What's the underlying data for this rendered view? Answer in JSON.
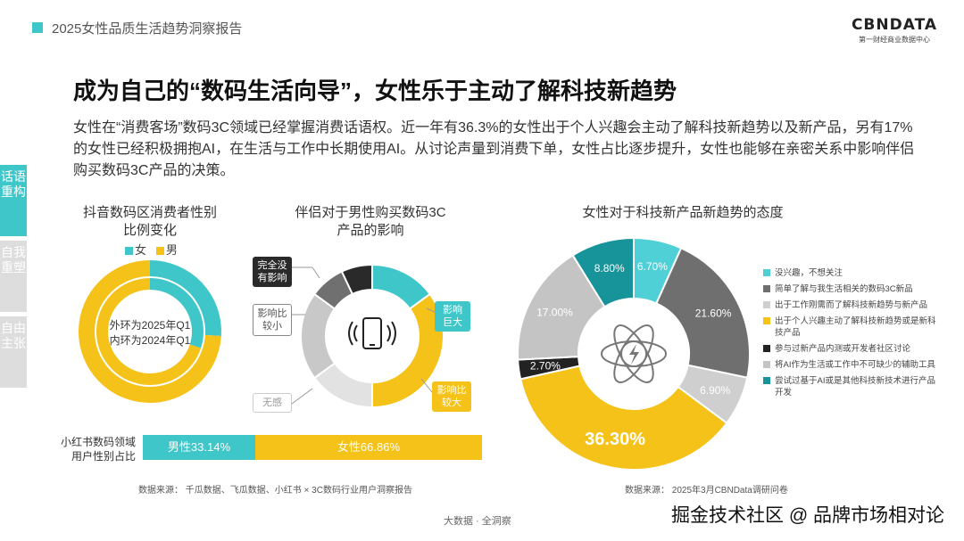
{
  "header": {
    "report_title": "2025女性品质生活趋势洞察报告"
  },
  "brand": {
    "name": "CBNDATA",
    "subtitle": "第一财经商业数据中心"
  },
  "main_title": "成为自己的“数码生活向导”，女性乐于主动了解科技新趋势",
  "intro": "女性在“消费客场”数码3C领域已经掌握消费话语权。近一年有36.3%的女性出于个人兴趣会主动了解科技新趋势以及新产品，另有17%的女性已经积极拥抱AI，在生活与工作中长期使用AI。从讨论声量到消费下单，女性占比逐步提升，女性也能够在亲密关系中影响伴侣购买数码3C产品的决策。",
  "side_tabs": [
    {
      "label": "话语重构",
      "active": true
    },
    {
      "label": "自我重塑",
      "active": false
    },
    {
      "label": "自由主张",
      "active": false
    }
  ],
  "colors": {
    "teal": "#3fc6c9",
    "yellow": "#f5c21a",
    "dark_gray": "#707070",
    "light_gray": "#c8c8c8",
    "black": "#2a2a2a",
    "dark_teal": "#17939a"
  },
  "chart_data": [
    {
      "type": "pie",
      "title": "抖音数码区消费者性别比例变化",
      "legend": [
        "女",
        "男"
      ],
      "note": "外环为2025年Q1\n内环为2024年Q1",
      "series": [
        {
          "values": [
            26,
            74
          ]
        },
        {
          "values": [
            30,
            70
          ]
        }
      ]
    },
    {
      "type": "pie",
      "title": "伴侣对于男性购买数码3C产品的影响",
      "categories": [
        "影响巨大",
        "影响比较大",
        "无感",
        "影响比较小",
        "完全没有影响"
      ],
      "values": [
        15,
        35,
        15,
        20,
        8
      ]
    },
    {
      "type": "bar",
      "title": "小红书数码领域用户性别占比",
      "categories": [
        "男性",
        "女性"
      ],
      "values": [
        33.14,
        66.86
      ],
      "labels": [
        "男性33.14%",
        "女性66.86%"
      ]
    },
    {
      "type": "pie",
      "title": "女性对于科技新产品新趋势的态度",
      "categories": [
        "没兴趣，不想关注",
        "简单了解与我生活相关的数码3C新品",
        "出于工作刚需而了解科技新趋势与新产品",
        "出于个人兴趣主动了解科技新趋势或是新科技产品",
        "参与过新产品内测或开发者社区讨论",
        "将AI作为生活或工作中不可缺少的辅助工具",
        "尝试过基于AI或是其他科技新技术进行产品开发"
      ],
      "values": [
        6.7,
        21.6,
        6.9,
        36.3,
        2.7,
        17.0,
        8.8
      ],
      "labels": [
        "6.70%",
        "21.60%",
        "6.90%",
        "36.30%",
        "2.70%",
        "17.00%",
        "8.80%"
      ]
    }
  ],
  "callouts": {
    "no_impact": "完全没有影响",
    "small": "影响比较小",
    "none": "无感",
    "huge": "影响巨大",
    "large": "影响比较大"
  },
  "sources": {
    "left": "数据来源：  千瓜数据、飞瓜数据、小红书 × 3C数码行业用户洞察报告",
    "right": "数据来源：  2025年3月CBNData调研问卷"
  },
  "footer": {
    "center": "大数据 · 全洞察",
    "watermark": "掘金技术社区 @ 品牌市场相对论"
  }
}
